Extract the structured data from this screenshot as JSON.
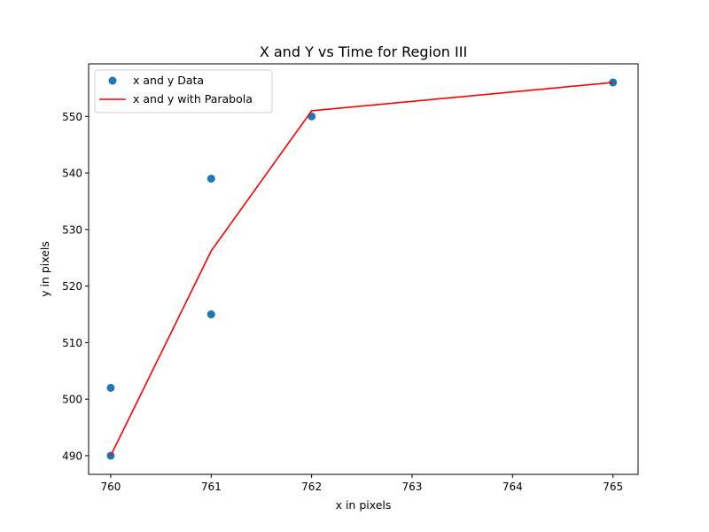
{
  "chart_data": {
    "type": "scatter",
    "title": "X and Y vs Time for Region III",
    "xlabel": "x in pixels",
    "ylabel": "y in pixels",
    "xlim": [
      759.78,
      765.25
    ],
    "ylim": [
      486.7,
      559.3
    ],
    "xticks": [
      "760",
      "761",
      "762",
      "763",
      "764",
      "765"
    ],
    "yticks": [
      "490",
      "500",
      "510",
      "520",
      "530",
      "540",
      "550"
    ],
    "grid": false,
    "legend_position": "upper-left",
    "series": [
      {
        "name": "x and y Data",
        "kind": "scatter",
        "color": "#1f77b4",
        "points": [
          [
            760,
            490
          ],
          [
            760,
            502
          ],
          [
            761,
            515
          ],
          [
            761,
            539
          ],
          [
            762,
            550
          ],
          [
            765,
            556
          ]
        ]
      },
      {
        "name": "x and y with Parabola",
        "kind": "line",
        "color": "#ff0000",
        "points": [
          [
            760,
            490
          ],
          [
            761,
            526.2
          ],
          [
            762,
            551
          ],
          [
            765,
            556
          ]
        ]
      }
    ]
  }
}
